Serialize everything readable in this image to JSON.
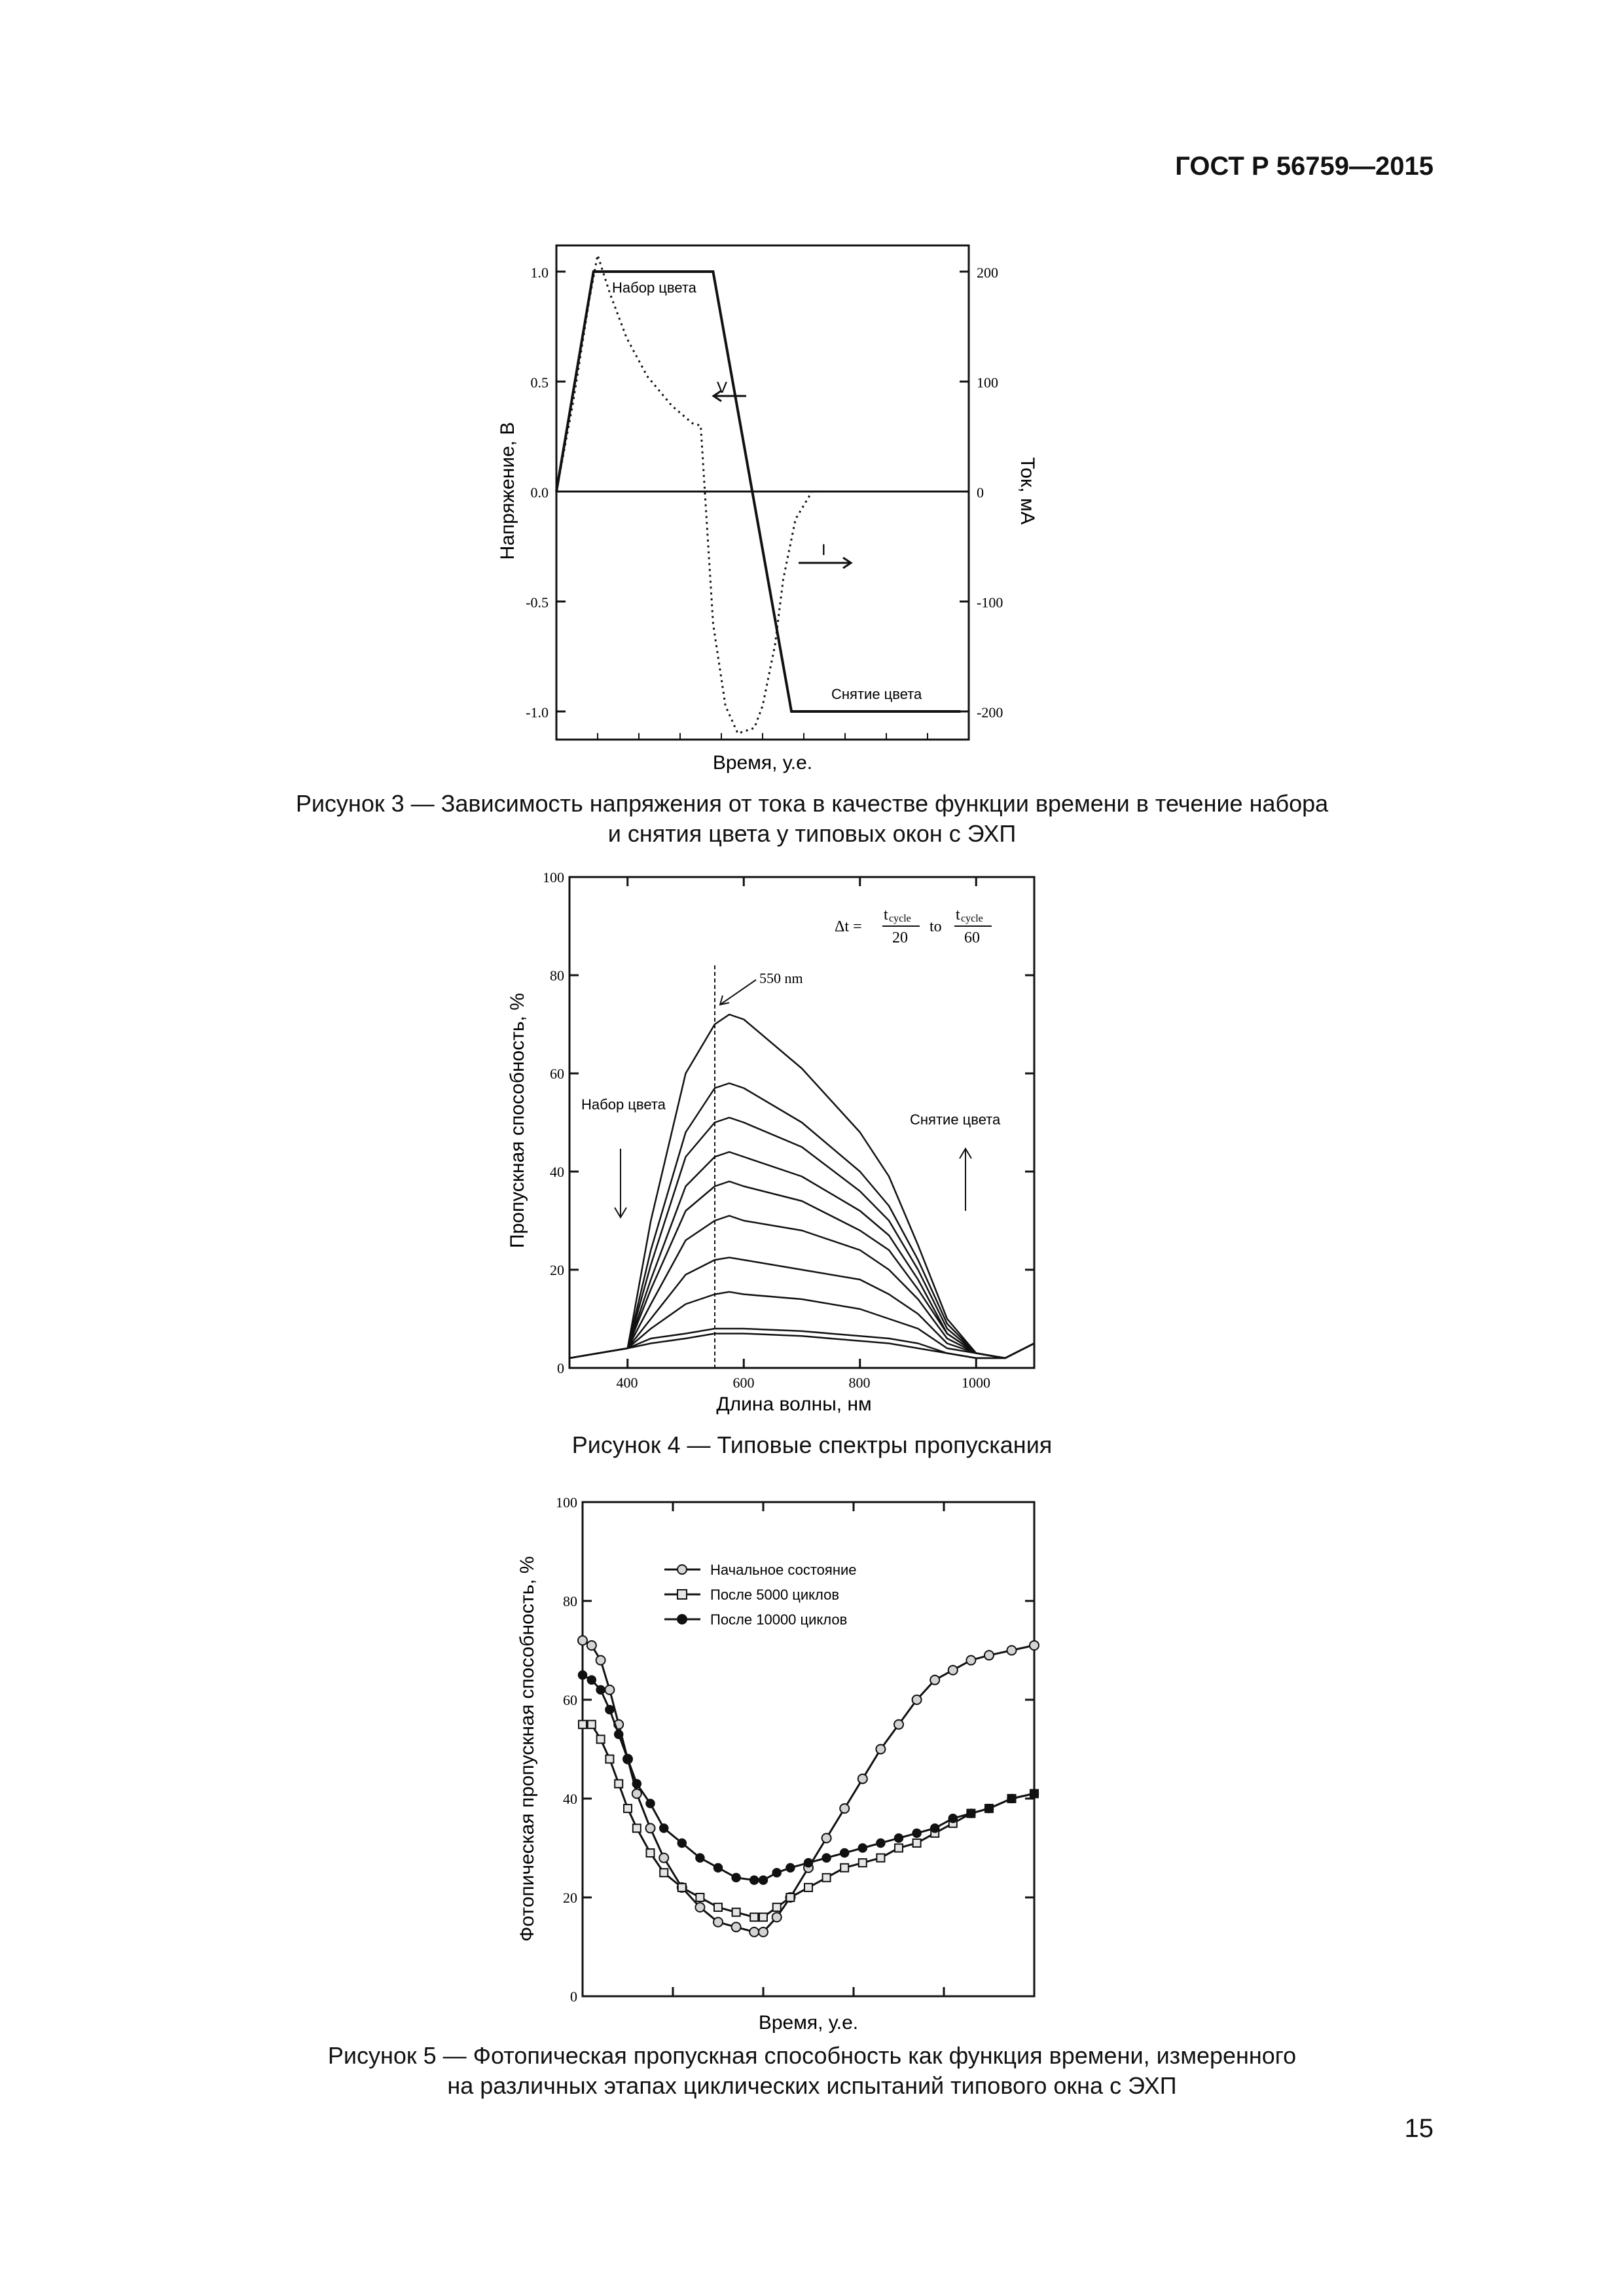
{
  "header": {
    "doc_id": "ГОСТ Р 56759—2015"
  },
  "page_number": "15",
  "figures": [
    {
      "caption_line1": "Рисунок 3 — Зависимость напряжения от тока в качестве функции времени в течение набора",
      "caption_line2": "и снятия цвета у типовых окон с ЭХП",
      "left_axis_label": "Напряжение, В",
      "right_axis_label": "Ток, мА",
      "x_axis_label": "Время, у.е.",
      "left_ticks": [
        "1.0",
        "0.5",
        "0.0",
        "-0.5",
        "-1.0"
      ],
      "right_ticks": [
        "200",
        "100",
        "0",
        "-100",
        "-200"
      ],
      "annotations": {
        "coloring": "Набор цвета",
        "bleaching": "Снятие цвета",
        "voltage": "V",
        "current": "I"
      }
    },
    {
      "caption": "Рисунок 4 — Типовые спектры пропускания",
      "y_axis_label": "Пропускная способность, %",
      "x_axis_label": "Длина волны, нм",
      "y_ticks": [
        "100",
        "80",
        "60",
        "40",
        "20",
        "0"
      ],
      "x_ticks": [
        "400",
        "600",
        "800",
        "1000"
      ],
      "annotations": {
        "wavelength": "550 nm",
        "coloring": "Набор цвета",
        "bleaching": "Снятие цвета",
        "formula_lhs": "Δt =",
        "formula_num1": "t",
        "formula_sub1": "cycle",
        "formula_den1": "20",
        "formula_to": "to",
        "formula_num2": "t",
        "formula_sub2": "cycle",
        "formula_den2": "60"
      }
    },
    {
      "caption_line1": "Рисунок 5 — Фотопическая пропускная способность как функция времени, измеренного",
      "caption_line2": "на различных этапах циклических испытаний типового окна с ЭХП",
      "y_axis_label": "Фотопическая пропускная способность, %",
      "x_axis_label": "Время, у.е.",
      "y_ticks": [
        "100",
        "80",
        "60",
        "40",
        "20",
        "0"
      ],
      "legend": [
        "Начальное состояние",
        "После 5000 циклов",
        "После 10000 циклов"
      ]
    }
  ],
  "chart_data": [
    {
      "type": "line",
      "title": "",
      "xlabel": "Время, у.е.",
      "ylabel": "Напряжение, В",
      "y2label": "Ток, мА",
      "ylim": [
        -1.0,
        1.0
      ],
      "y2lim": [
        -200,
        200
      ],
      "xlim": [
        0,
        1
      ],
      "series": [
        {
          "name": "V",
          "axis": "left",
          "style": "solid",
          "x": [
            0.0,
            0.09,
            0.38,
            0.57,
            0.98
          ],
          "y": [
            0.0,
            1.0,
            1.0,
            -1.0,
            -1.0
          ]
        },
        {
          "name": "I",
          "axis": "right",
          "style": "dotted",
          "x": [
            0.0,
            0.04,
            0.08,
            0.1,
            0.13,
            0.17,
            0.22,
            0.28,
            0.33,
            0.35,
            0.36,
            0.38,
            0.41,
            0.44,
            0.48,
            0.5,
            0.53,
            0.55,
            0.58,
            0.62,
            0.66
          ],
          "y": [
            0,
            80,
            175,
            215,
            180,
            140,
            105,
            78,
            62,
            60,
            0,
            -120,
            -195,
            -220,
            -215,
            -195,
            -140,
            -80,
            -25,
            0,
            0
          ]
        }
      ]
    },
    {
      "type": "line",
      "title": "",
      "xlabel": "Длина волны, нм",
      "ylabel": "Пропускная способность, %",
      "xlim": [
        300,
        1100
      ],
      "ylim": [
        0,
        100
      ],
      "series": [
        {
          "x": [
            300,
            400,
            440,
            500,
            550,
            575,
            600,
            700,
            800,
            850,
            900,
            950,
            1000,
            1050,
            1100
          ],
          "y": [
            2,
            4,
            30,
            60,
            70,
            72,
            71,
            61,
            48,
            39,
            25,
            10,
            3,
            2,
            5
          ]
        },
        {
          "x": [
            300,
            400,
            440,
            500,
            550,
            575,
            600,
            700,
            800,
            850,
            900,
            950,
            1000,
            1050,
            1100
          ],
          "y": [
            2,
            4,
            24,
            48,
            57,
            58,
            57,
            50,
            40,
            33,
            22,
            9,
            3,
            2,
            5
          ]
        },
        {
          "x": [
            300,
            400,
            440,
            500,
            550,
            575,
            600,
            700,
            800,
            850,
            900,
            950,
            1000,
            1050,
            1100
          ],
          "y": [
            2,
            4,
            21,
            43,
            50,
            51,
            50,
            45,
            36,
            30,
            20,
            8,
            3,
            2,
            5
          ]
        },
        {
          "x": [
            300,
            400,
            440,
            500,
            550,
            575,
            600,
            700,
            800,
            850,
            900,
            950,
            1000,
            1050,
            1100
          ],
          "y": [
            2,
            4,
            18,
            37,
            43,
            44,
            43,
            39,
            32,
            27,
            18,
            7,
            3,
            2,
            5
          ]
        },
        {
          "x": [
            300,
            400,
            440,
            500,
            550,
            575,
            600,
            700,
            800,
            850,
            900,
            950,
            1000,
            1050,
            1100
          ],
          "y": [
            2,
            4,
            16,
            32,
            37,
            38,
            37,
            34,
            28,
            24,
            16,
            7,
            3,
            2,
            5
          ]
        },
        {
          "x": [
            300,
            400,
            440,
            500,
            550,
            575,
            600,
            700,
            800,
            850,
            900,
            950,
            1000,
            1050,
            1100
          ],
          "y": [
            2,
            4,
            13,
            26,
            30,
            31,
            30,
            28,
            24,
            20,
            14,
            6,
            3,
            2,
            5
          ]
        },
        {
          "x": [
            300,
            400,
            440,
            500,
            550,
            575,
            600,
            700,
            800,
            850,
            900,
            950,
            1000,
            1050,
            1100
          ],
          "y": [
            2,
            4,
            10,
            19,
            22,
            22.5,
            22,
            20,
            18,
            15,
            11,
            5,
            3,
            2,
            5
          ]
        },
        {
          "x": [
            300,
            400,
            440,
            500,
            550,
            575,
            600,
            700,
            800,
            850,
            900,
            950,
            1000,
            1050,
            1100
          ],
          "y": [
            2,
            4,
            8,
            13,
            15,
            15.5,
            15,
            14,
            12,
            10,
            8,
            4,
            3,
            2,
            5
          ]
        },
        {
          "x": [
            300,
            400,
            440,
            500,
            550,
            575,
            600,
            700,
            800,
            850,
            900,
            950,
            1000,
            1050,
            1100
          ],
          "y": [
            2,
            4,
            6,
            7,
            8,
            8,
            8,
            7.5,
            6.5,
            6,
            5,
            3,
            2,
            2,
            5
          ]
        },
        {
          "x": [
            300,
            400,
            440,
            500,
            550,
            575,
            600,
            700,
            800,
            850,
            900,
            950,
            1000,
            1050,
            1100
          ],
          "y": [
            2,
            4,
            5,
            6,
            7,
            7,
            7,
            6.5,
            5.5,
            5,
            4,
            3,
            2,
            2,
            5
          ]
        }
      ]
    },
    {
      "type": "line",
      "title": "",
      "xlabel": "Время, у.е.",
      "ylabel": "Фотопическая пропускная способность, %",
      "xlim": [
        0,
        100
      ],
      "ylim": [
        0,
        100
      ],
      "series": [
        {
          "name": "Начальное состояние",
          "marker": "open-circle",
          "x": [
            0,
            2,
            4,
            6,
            8,
            10,
            12,
            15,
            18,
            22,
            26,
            30,
            34,
            38,
            40,
            43,
            46,
            50,
            54,
            58,
            62,
            66,
            70,
            74,
            78,
            82,
            86,
            90,
            95,
            100
          ],
          "y": [
            72,
            71,
            68,
            62,
            55,
            48,
            41,
            34,
            28,
            22,
            18,
            15,
            14,
            13,
            13,
            16,
            20,
            26,
            32,
            38,
            44,
            50,
            55,
            60,
            64,
            66,
            68,
            69,
            70,
            71
          ]
        },
        {
          "name": "После 5000 циклов",
          "marker": "open-square",
          "x": [
            0,
            2,
            4,
            6,
            8,
            10,
            12,
            15,
            18,
            22,
            26,
            30,
            34,
            38,
            40,
            43,
            46,
            50,
            54,
            58,
            62,
            66,
            70,
            74,
            78,
            82,
            86,
            90,
            95,
            100
          ],
          "y": [
            55,
            55,
            52,
            48,
            43,
            38,
            34,
            29,
            25,
            22,
            20,
            18,
            17,
            16,
            16,
            18,
            20,
            22,
            24,
            26,
            27,
            28,
            30,
            31,
            33,
            35,
            37,
            38,
            40,
            41
          ]
        },
        {
          "name": "После 10000 циклов",
          "marker": "filled-circle",
          "x": [
            0,
            2,
            4,
            6,
            8,
            10,
            12,
            15,
            18,
            22,
            26,
            30,
            34,
            38,
            40,
            43,
            46,
            50,
            54,
            58,
            62,
            66,
            70,
            74,
            78,
            82,
            86,
            90,
            95,
            100
          ],
          "y": [
            65,
            64,
            62,
            58,
            53,
            48,
            43,
            39,
            34,
            31,
            28,
            26,
            24,
            23.5,
            23.5,
            25,
            26,
            27,
            28,
            29,
            30,
            31,
            32,
            33,
            34,
            36,
            37,
            38,
            40,
            41
          ]
        }
      ]
    }
  ]
}
